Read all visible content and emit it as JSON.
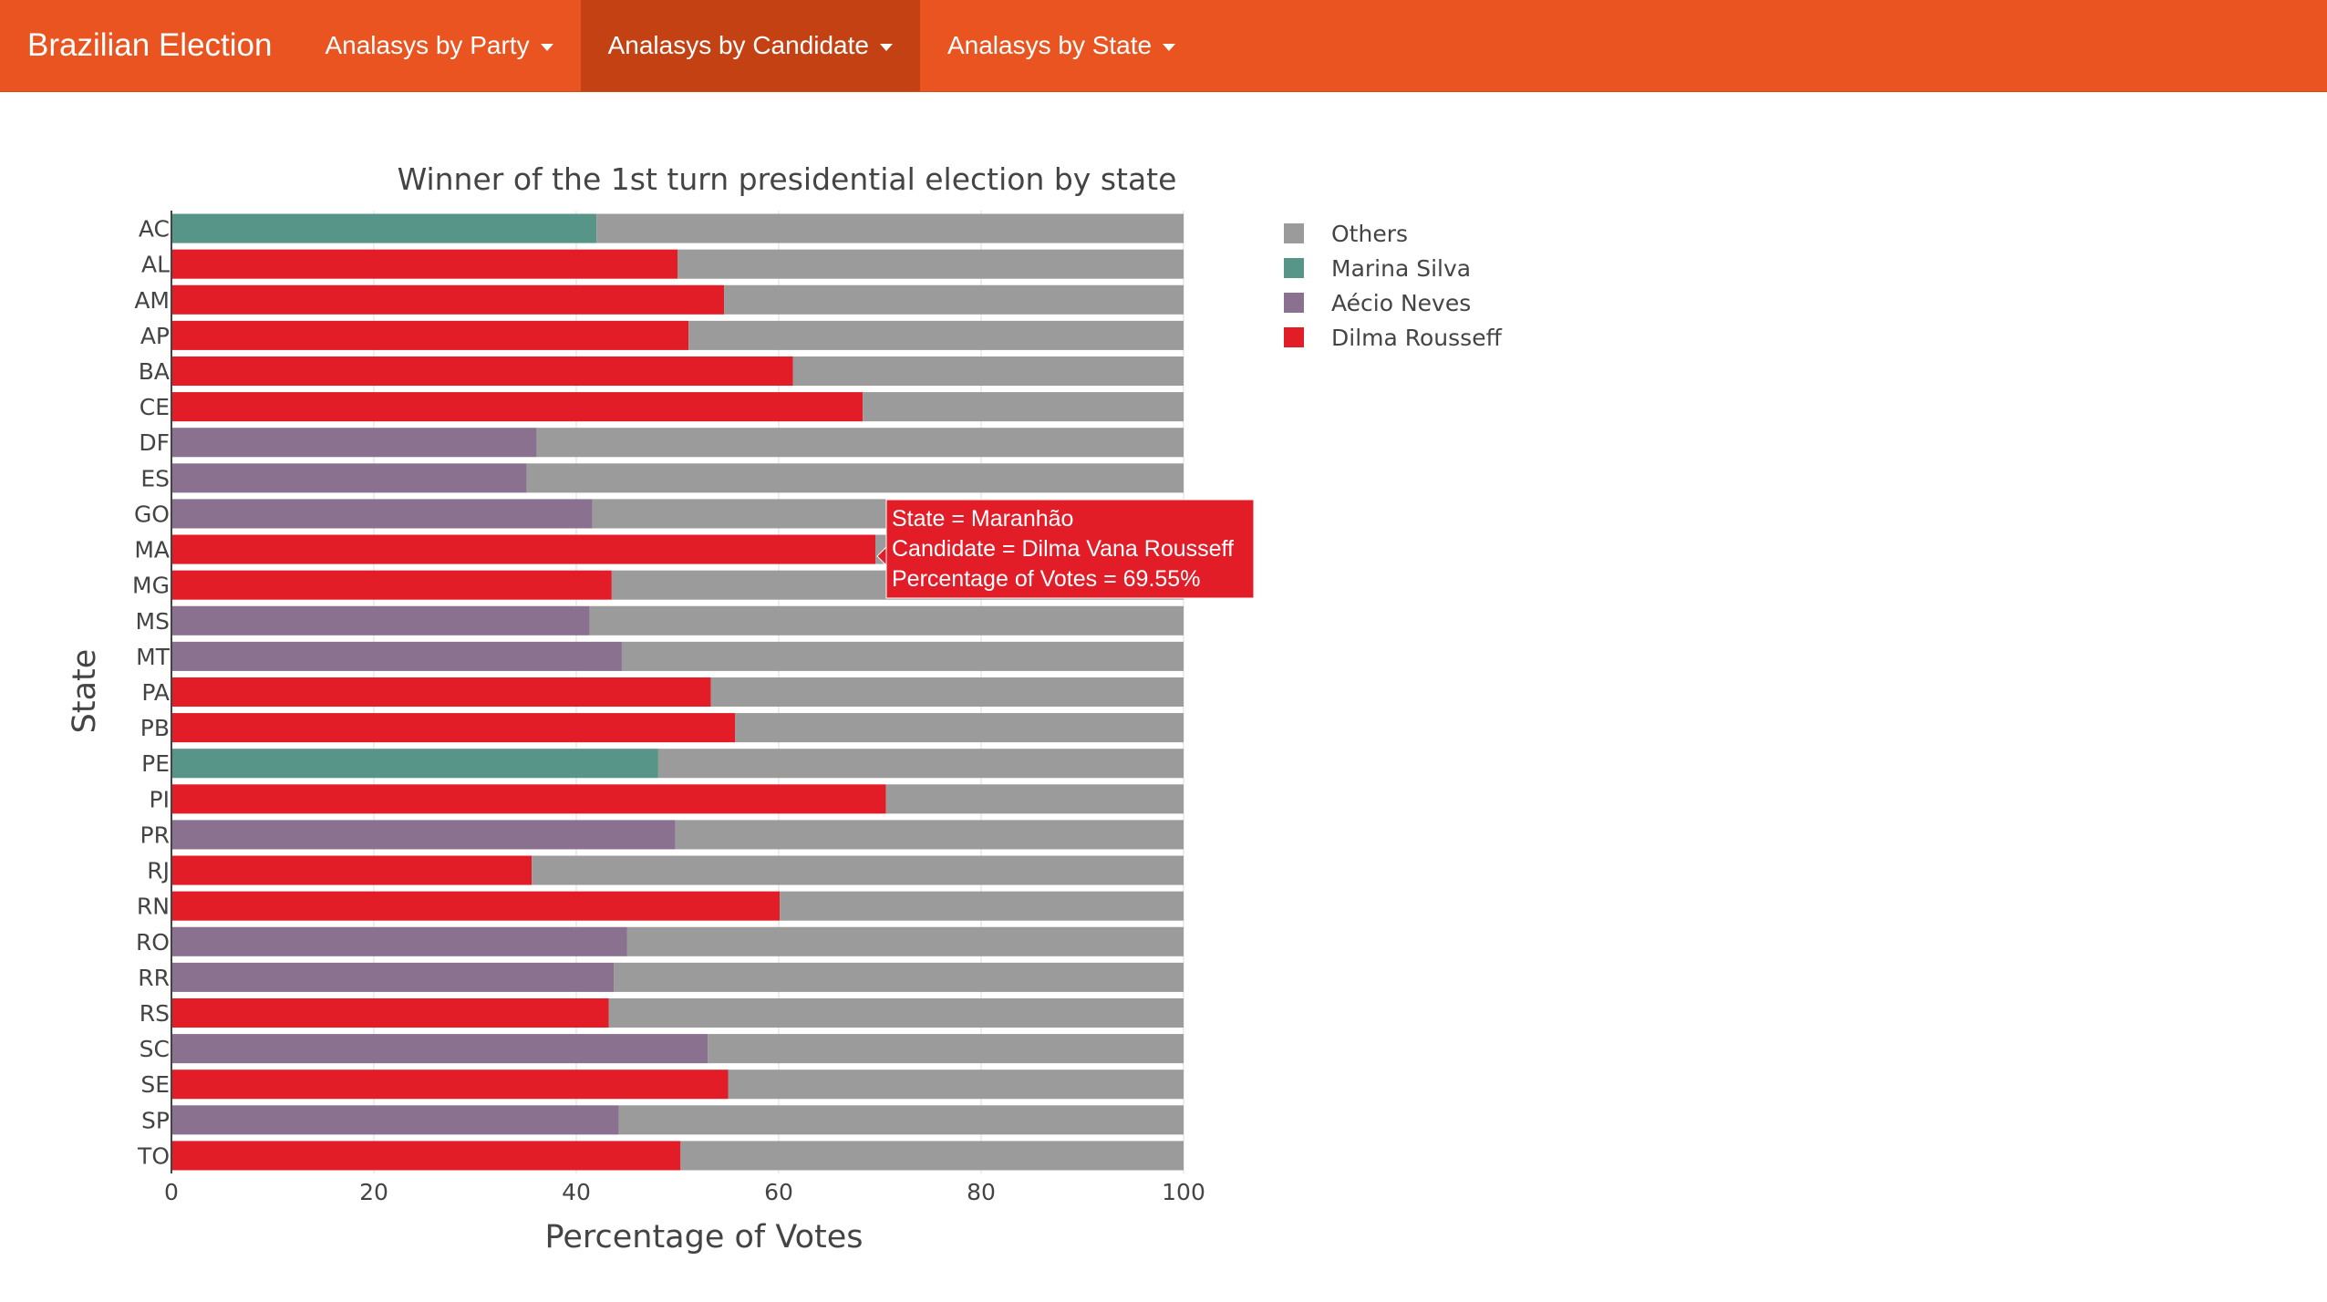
{
  "navbar": {
    "brand": "Brazilian Election",
    "items": [
      {
        "label": "Analasys by Party",
        "active": false
      },
      {
        "label": "Analasys by Candidate",
        "active": true
      },
      {
        "label": "Analasys by State",
        "active": false
      }
    ],
    "color": "#e95420",
    "active_color": "#c34113"
  },
  "tooltip": {
    "line1": "State = Maranhão",
    "line2": "Candidate = Dilma Vana Rousseff",
    "line3": "Percentage of Votes = 69.55%",
    "color": "#e31d28"
  },
  "chart_data": {
    "type": "bar",
    "orientation": "horizontal",
    "stacked": true,
    "title": "Winner of the 1st turn presidential election by state",
    "xlabel": "Percentage of Votes",
    "ylabel": "State",
    "xlim": [
      0,
      100
    ],
    "xticks": [
      0,
      20,
      40,
      60,
      80,
      100
    ],
    "legend_position": "top-right",
    "grid": true,
    "categories": [
      "AC",
      "AL",
      "AM",
      "AP",
      "BA",
      "CE",
      "DF",
      "ES",
      "GO",
      "MA",
      "MG",
      "MS",
      "MT",
      "PA",
      "PB",
      "PE",
      "PI",
      "PR",
      "RJ",
      "RN",
      "RO",
      "RR",
      "RS",
      "SC",
      "SE",
      "SP",
      "TO"
    ],
    "winner_values": [
      42.0,
      50.0,
      54.6,
      51.1,
      61.4,
      68.3,
      36.1,
      35.1,
      41.6,
      69.55,
      43.5,
      41.3,
      44.5,
      53.3,
      55.7,
      48.1,
      70.6,
      49.8,
      35.6,
      60.1,
      45.0,
      43.7,
      43.2,
      53.0,
      55.0,
      44.2,
      50.3
    ],
    "winners": [
      "Marina Silva",
      "Dilma Rousseff",
      "Dilma Rousseff",
      "Dilma Rousseff",
      "Dilma Rousseff",
      "Dilma Rousseff",
      "Aécio Neves",
      "Aécio Neves",
      "Aécio Neves",
      "Dilma Rousseff",
      "Dilma Rousseff",
      "Aécio Neves",
      "Aécio Neves",
      "Dilma Rousseff",
      "Dilma Rousseff",
      "Marina Silva",
      "Dilma Rousseff",
      "Aécio Neves",
      "Dilma Rousseff",
      "Dilma Rousseff",
      "Aécio Neves",
      "Aécio Neves",
      "Dilma Rousseff",
      "Aécio Neves",
      "Dilma Rousseff",
      "Aécio Neves",
      "Dilma Rousseff"
    ],
    "others_name": "Others",
    "legend": [
      {
        "name": "Others",
        "color": "#9b9b9b"
      },
      {
        "name": "Marina Silva",
        "color": "#569587"
      },
      {
        "name": "Aécio Neves",
        "color": "#8a7190"
      },
      {
        "name": "Dilma Rousseff",
        "color": "#e31d28"
      }
    ]
  }
}
